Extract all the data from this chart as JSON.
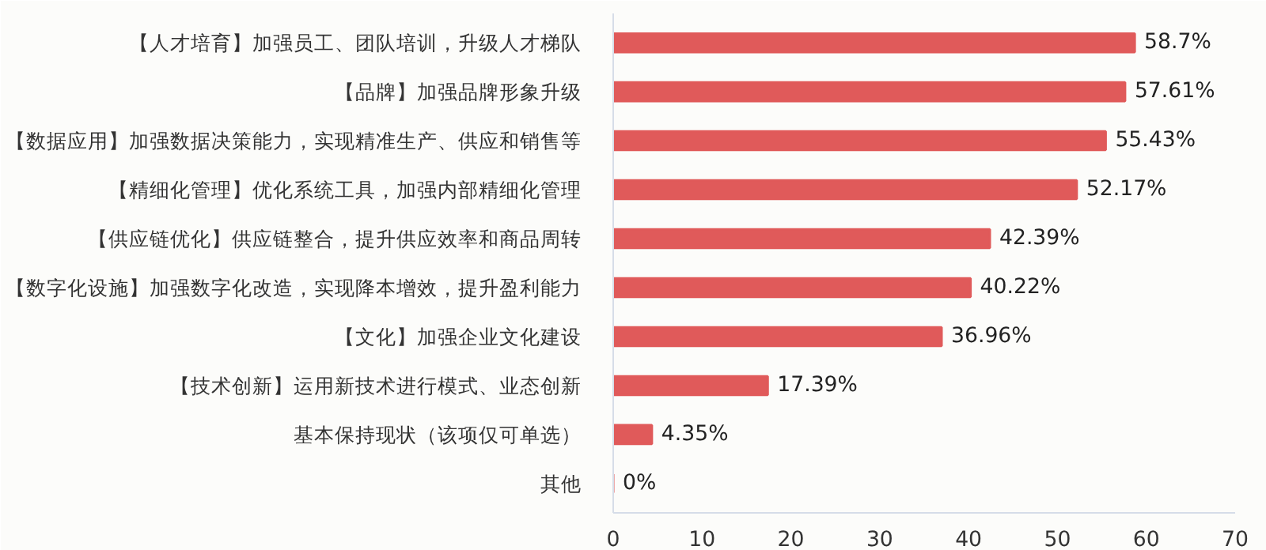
{
  "chart_data": {
    "type": "bar",
    "orientation": "horizontal",
    "categories": [
      "【人才培育】加强员工、团队培训，升级人才梯队",
      "【品牌】加强品牌形象升级",
      "【数据应用】加强数据决策能力，实现精准生产、供应和销售等",
      "【精细化管理】优化系统工具，加强内部精细化管理",
      "【供应链优化】供应链整合，提升供应效率和商品周转",
      "【数字化设施】加强数字化改造，实现降本增效，提升盈利能力",
      "【文化】加强企业文化建设",
      "【技术创新】运用新技术进行模式、业态创新",
      "基本保持现状（该项仅可单选）",
      "其他"
    ],
    "values": [
      58.7,
      57.61,
      55.43,
      52.17,
      42.39,
      40.22,
      36.96,
      17.39,
      4.35,
      0
    ],
    "value_labels": [
      "58.7%",
      "57.61%",
      "55.43%",
      "52.17%",
      "42.39%",
      "40.22%",
      "36.96%",
      "17.39%",
      "4.35%",
      "0%"
    ],
    "color": "#e05a5a",
    "xlim": [
      0,
      70
    ],
    "xticks": [
      0,
      10,
      20,
      30,
      40,
      50,
      60,
      70
    ],
    "grid": false
  }
}
